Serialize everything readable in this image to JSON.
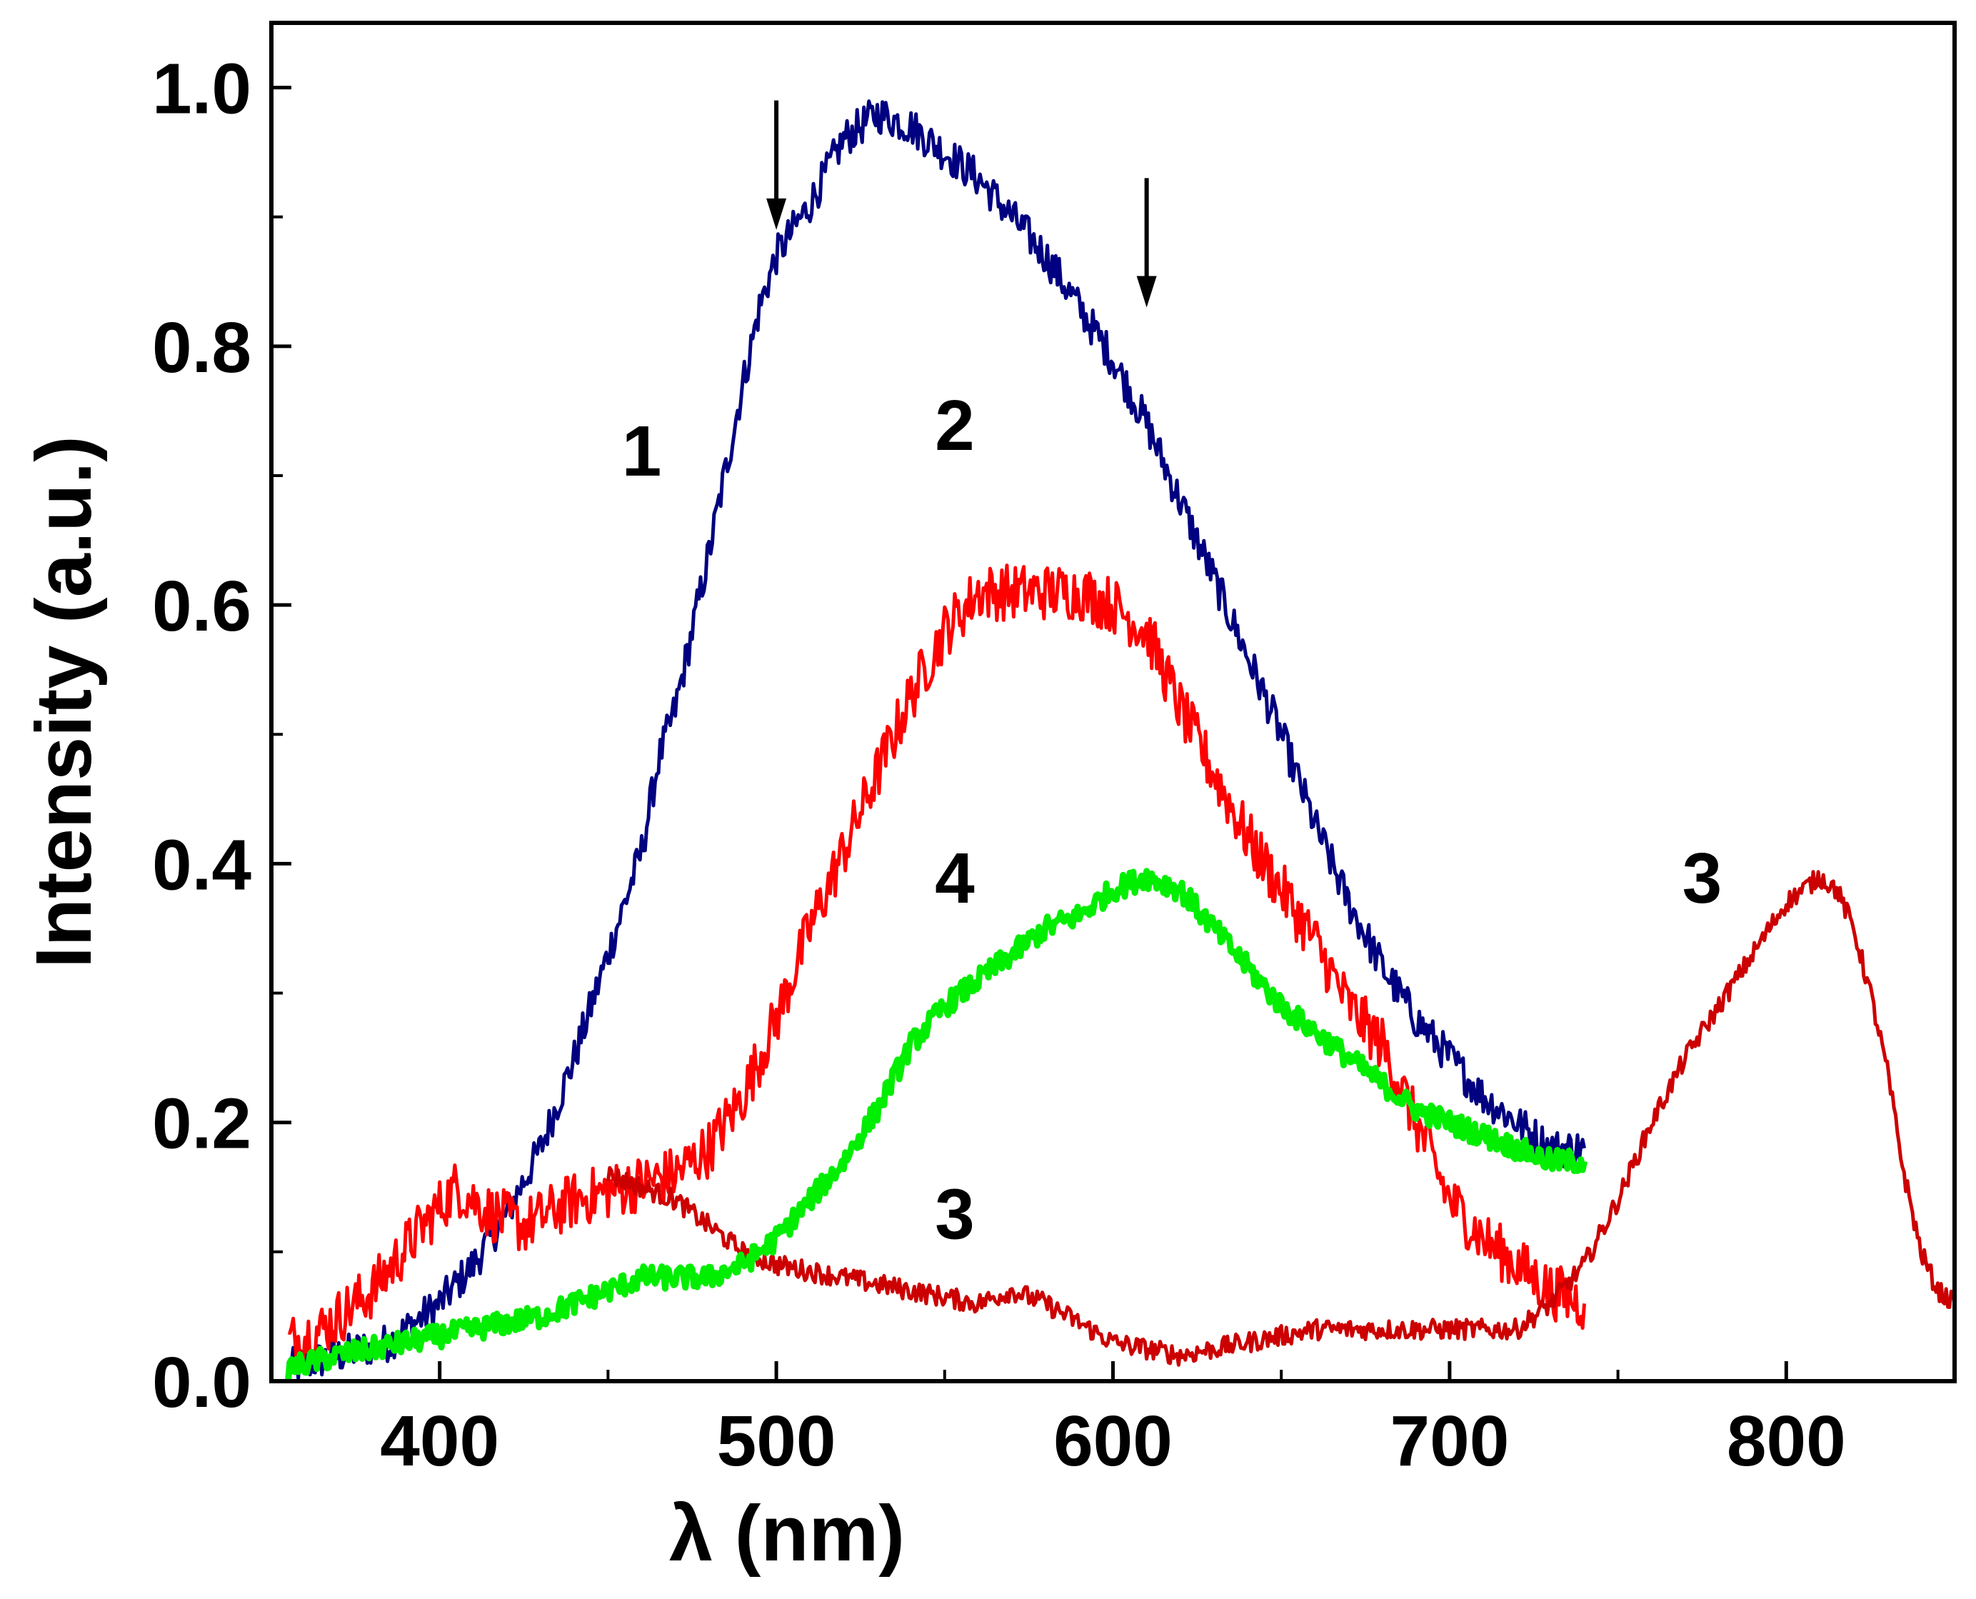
{
  "chart_data": {
    "type": "line",
    "title": "",
    "xlabel": "λ (nm)",
    "ylabel": "Intensity (a.u.)",
    "xlim": [
      350,
      850
    ],
    "ylim": [
      0,
      1.05
    ],
    "xticks": [
      400,
      500,
      600,
      700,
      800
    ],
    "xtick_labels": [
      "400",
      "500",
      "600",
      "700",
      "800"
    ],
    "yticks": [
      0.0,
      0.2,
      0.4,
      0.6,
      0.8,
      1.0
    ],
    "ytick_labels": [
      "0.0",
      "0.2",
      "0.4",
      "0.6",
      "0.8",
      "1.0"
    ],
    "grid": false,
    "series": [
      {
        "name": "1",
        "color": "#000080",
        "x": [
          355,
          370,
          385,
          400,
          410,
          420,
          430,
          440,
          450,
          460,
          465,
          470,
          480,
          490,
          495,
          500,
          510,
          520,
          530,
          540,
          550,
          560,
          570,
          580,
          590,
          600,
          610,
          620,
          630,
          640,
          650,
          660,
          670,
          680,
          690,
          700,
          710,
          720,
          730,
          740
        ],
        "y": [
          0.01,
          0.02,
          0.03,
          0.06,
          0.09,
          0.13,
          0.18,
          0.25,
          0.33,
          0.41,
          0.48,
          0.52,
          0.64,
          0.77,
          0.83,
          0.87,
          0.91,
          0.96,
          0.98,
          0.97,
          0.95,
          0.93,
          0.9,
          0.87,
          0.83,
          0.79,
          0.74,
          0.68,
          0.62,
          0.56,
          0.5,
          0.43,
          0.37,
          0.32,
          0.28,
          0.25,
          0.22,
          0.2,
          0.18,
          0.18
        ],
        "noise": 0.015
      },
      {
        "name": "2",
        "color": "#ff0000",
        "x": [
          355,
          365,
          380,
          395,
          405,
          415,
          425,
          440,
          455,
          470,
          480,
          490,
          500,
          510,
          520,
          530,
          540,
          550,
          560,
          570,
          580,
          590,
          600,
          610,
          620,
          630,
          640,
          650,
          660,
          670,
          680,
          690,
          700,
          710,
          720,
          730,
          740
        ],
        "y": [
          0.03,
          0.04,
          0.07,
          0.12,
          0.15,
          0.13,
          0.12,
          0.14,
          0.15,
          0.16,
          0.18,
          0.22,
          0.28,
          0.35,
          0.41,
          0.47,
          0.53,
          0.58,
          0.61,
          0.61,
          0.61,
          0.61,
          0.6,
          0.58,
          0.52,
          0.47,
          0.42,
          0.38,
          0.34,
          0.29,
          0.26,
          0.2,
          0.14,
          0.11,
          0.09,
          0.07,
          0.06
        ],
        "noise": 0.022
      },
      {
        "name": "3",
        "color": "#cc0000",
        "x": [
          450,
          460,
          470,
          480,
          490,
          500,
          520,
          540,
          560,
          570,
          580,
          600,
          620,
          640,
          660,
          680,
          700,
          710,
          720,
          730,
          740,
          750,
          760,
          770,
          780,
          790,
          800,
          805,
          810,
          815,
          820,
          825,
          830,
          835,
          840,
          845,
          850
        ],
        "y": [
          0.16,
          0.15,
          0.14,
          0.12,
          0.1,
          0.09,
          0.08,
          0.07,
          0.06,
          0.07,
          0.06,
          0.03,
          0.02,
          0.03,
          0.04,
          0.04,
          0.04,
          0.04,
          0.04,
          0.06,
          0.09,
          0.14,
          0.2,
          0.25,
          0.29,
          0.33,
          0.37,
          0.38,
          0.39,
          0.38,
          0.35,
          0.3,
          0.24,
          0.16,
          0.1,
          0.07,
          0.06
        ],
        "noise": 0.008
      },
      {
        "name": "4",
        "color": "#00ee00",
        "x": [
          355,
          370,
          390,
          410,
          430,
          450,
          460,
          470,
          480,
          490,
          500,
          510,
          520,
          530,
          540,
          550,
          560,
          570,
          580,
          590,
          600,
          610,
          620,
          630,
          640,
          650,
          660,
          670,
          680,
          690,
          700,
          710,
          720,
          730,
          740
        ],
        "y": [
          0.01,
          0.02,
          0.03,
          0.04,
          0.05,
          0.07,
          0.08,
          0.08,
          0.08,
          0.09,
          0.11,
          0.14,
          0.17,
          0.21,
          0.26,
          0.29,
          0.31,
          0.33,
          0.35,
          0.36,
          0.38,
          0.39,
          0.38,
          0.35,
          0.32,
          0.29,
          0.27,
          0.25,
          0.23,
          0.21,
          0.2,
          0.19,
          0.18,
          0.17,
          0.17
        ],
        "noise": 0.009
      }
    ],
    "annotations": [
      {
        "type": "arrow",
        "x": 500,
        "y_from": 0.99,
        "y_to": 0.89,
        "label": ""
      },
      {
        "type": "arrow",
        "x": 610,
        "y_from": 0.93,
        "y_to": 0.83,
        "label": ""
      }
    ],
    "curve_labels": [
      {
        "text": "1",
        "x": 460,
        "y": 0.7
      },
      {
        "text": "2",
        "x": 553,
        "y": 0.72
      },
      {
        "text": "4",
        "x": 553,
        "y": 0.37
      },
      {
        "text": "3",
        "x": 553,
        "y": 0.11
      },
      {
        "text": "3",
        "x": 775,
        "y": 0.37
      }
    ]
  }
}
